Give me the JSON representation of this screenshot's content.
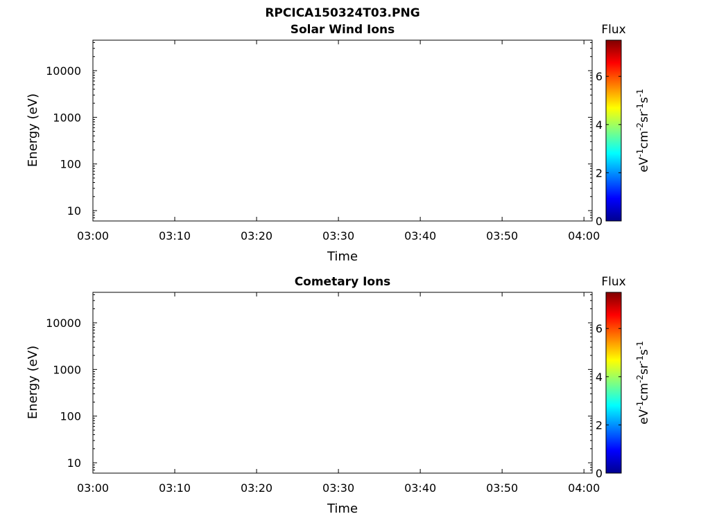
{
  "figure_title": "RPCICA150324T03.PNG",
  "chart_data": [
    {
      "type": "heatmap",
      "title": "Solar Wind Ions",
      "xlabel": "Time",
      "ylabel": "Energy (eV)",
      "x_ticks": [
        "03:00",
        "03:10",
        "03:20",
        "03:30",
        "03:40",
        "03:50",
        "04:00"
      ],
      "xlim": [
        "03:00",
        "04:01"
      ],
      "y_ticks": [
        "10",
        "100",
        "1000",
        "10000"
      ],
      "yscale": "log",
      "ylim": [
        6,
        45000
      ],
      "colorbar": {
        "title": "Flux",
        "label": "eV-1cm-2sr-1s-1",
        "ticks": [
          "0",
          "2",
          "4",
          "6"
        ],
        "range": [
          0,
          7.5
        ]
      },
      "grid": false
    },
    {
      "type": "heatmap",
      "title": "Cometary Ions",
      "xlabel": "Time",
      "ylabel": "Energy (eV)",
      "x_ticks": [
        "03:00",
        "03:10",
        "03:20",
        "03:30",
        "03:40",
        "03:50",
        "04:00"
      ],
      "xlim": [
        "03:00",
        "04:01"
      ],
      "y_ticks": [
        "10",
        "100",
        "1000",
        "10000"
      ],
      "yscale": "log",
      "ylim": [
        6,
        45000
      ],
      "colorbar": {
        "title": "Flux",
        "label": "eV-1cm-2sr-1s-1",
        "ticks": [
          "0",
          "2",
          "4",
          "6"
        ],
        "range": [
          0,
          7.5
        ]
      },
      "grid": false
    }
  ]
}
